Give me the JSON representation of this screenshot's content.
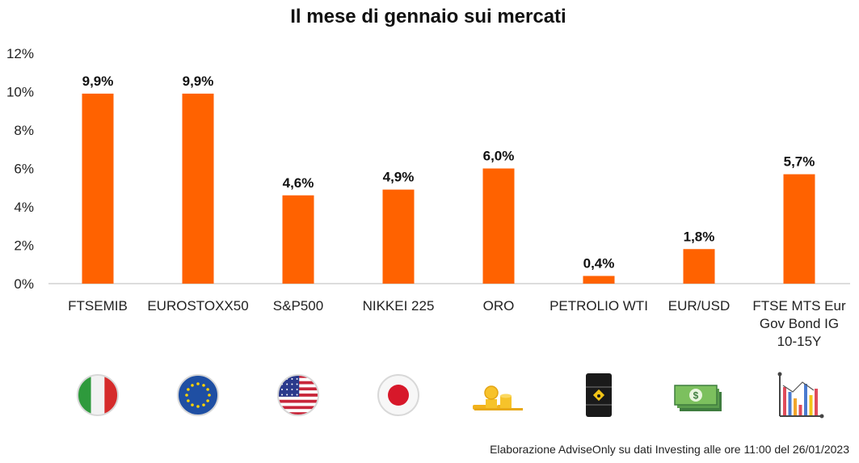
{
  "chart_data": {
    "type": "bar",
    "title": "Il mese di gennaio sui mercati",
    "categories": [
      [
        "FTSEMIB"
      ],
      [
        "EUROSTOXX50"
      ],
      [
        "S&P500"
      ],
      [
        "NIKKEI 225"
      ],
      [
        "ORO"
      ],
      [
        "PETROLIO WTI"
      ],
      [
        "EUR/USD"
      ],
      [
        "FTSE MTS Eur",
        "Gov Bond IG",
        "10-15Y"
      ]
    ],
    "values": [
      9.9,
      9.9,
      4.6,
      4.9,
      6.0,
      0.4,
      1.8,
      5.7
    ],
    "value_labels": [
      "9,9%",
      "9,9%",
      "4,6%",
      "4,9%",
      "6,0%",
      "0,4%",
      "1,8%",
      "5,7%"
    ],
    "yticks": [
      0,
      2,
      4,
      6,
      8,
      10,
      12
    ],
    "ytick_labels": [
      "0%",
      "2%",
      "4%",
      "6%",
      "8%",
      "10%",
      "12%"
    ],
    "ylim": [
      0,
      12
    ],
    "bar_color": "#ff6200",
    "grid": false
  },
  "icons": [
    "italy-flag-icon",
    "eu-flag-icon",
    "usa-flag-icon",
    "japan-flag-icon",
    "gold-coins-icon",
    "oil-barrel-icon",
    "dollar-banknote-icon",
    "bar-chart-icon"
  ],
  "source": "Elaborazione AdviseOnly su dati Investing alle ore 11:00 del 26/01/2023"
}
